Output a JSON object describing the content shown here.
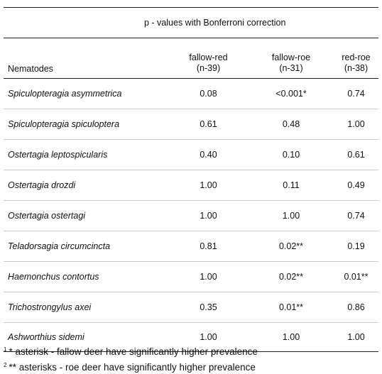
{
  "table": {
    "caption": "p - values with Bonferroni correction",
    "headers": {
      "name": "Nematodes",
      "col1_line1": "fallow-red",
      "col1_line2": "(n-39)",
      "col2_line1": "fallow-roe",
      "col2_line2": "(n-31)",
      "col3_line1": "red-roe",
      "col3_line2": "(n-38)"
    },
    "rows": [
      {
        "name": "Spiculopteragia asymmetrica",
        "fallow_red": "0.08",
        "fallow_roe": "<0.001*",
        "red_roe": "0.74"
      },
      {
        "name": "Spiculopteragia spiculoptera",
        "fallow_red": "0.61",
        "fallow_roe": "0.48",
        "red_roe": "1.00"
      },
      {
        "name": "Ostertagia leptospicularis",
        "fallow_red": "0.40",
        "fallow_roe": "0.10",
        "red_roe": "0.61"
      },
      {
        "name": "Ostertagia drozdi",
        "fallow_red": "1.00",
        "fallow_roe": "0.11",
        "red_roe": "0.49"
      },
      {
        "name": "Ostertagia ostertagi",
        "fallow_red": "1.00",
        "fallow_roe": "1.00",
        "red_roe": "0.74"
      },
      {
        "name": "Teladorsagia circumcincta",
        "fallow_red": "0.81",
        "fallow_roe": "0.02**",
        "red_roe": "0.19"
      },
      {
        "name": "Haemonchus contortus",
        "fallow_red": "1.00",
        "fallow_roe": "0.02**",
        "red_roe": "0.01**"
      },
      {
        "name": "Trichostrongylus axei",
        "fallow_red": "0.35",
        "fallow_roe": "0.01**",
        "red_roe": "0.86"
      },
      {
        "name": "Ashworthius sidemi",
        "fallow_red": "1.00",
        "fallow_roe": "1.00",
        "red_roe": "1.00"
      }
    ]
  },
  "footnotes": [
    {
      "mark": "1",
      "text": "* asterisk - fallow deer have significantly higher prevalence"
    },
    {
      "mark": "2",
      "text": "** asterisks - roe deer have significantly higher prevalence"
    }
  ]
}
